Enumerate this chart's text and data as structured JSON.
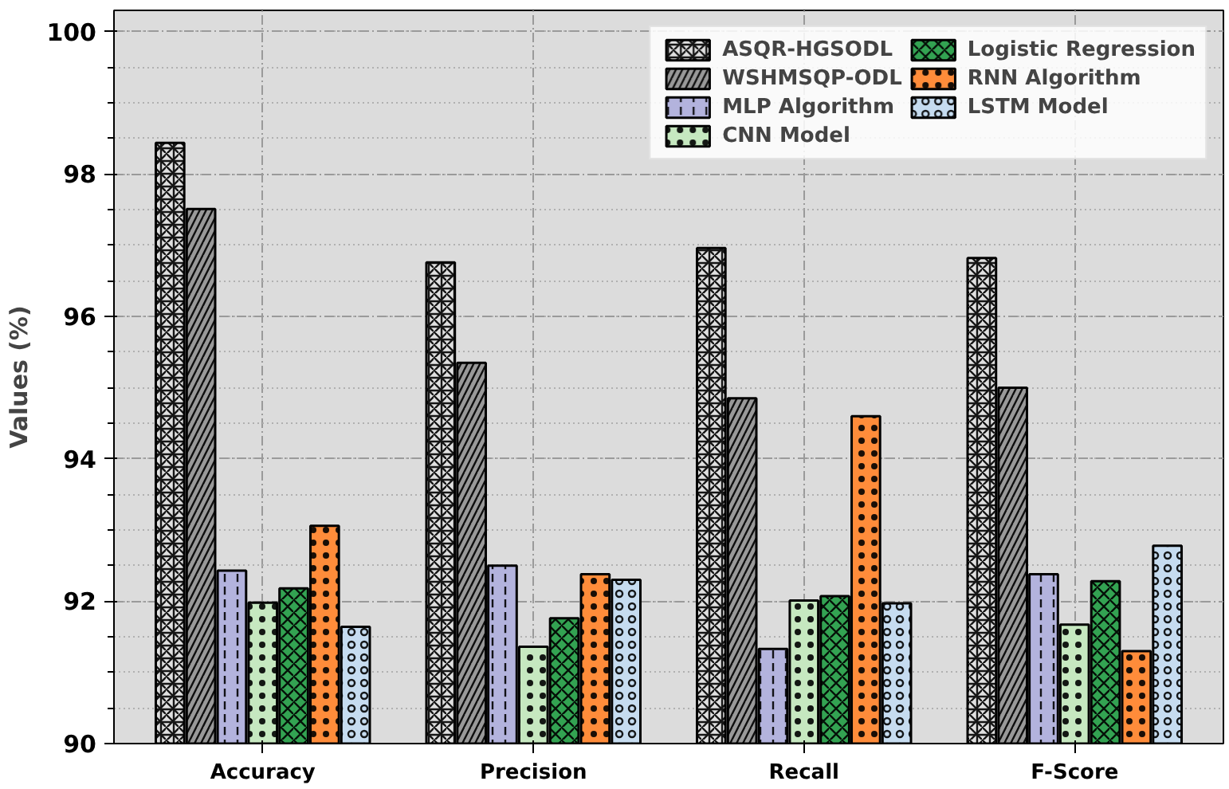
{
  "chart_data": {
    "type": "bar",
    "ylabel": "Values (%)",
    "categories": [
      "Accuracy",
      "Precision",
      "Recall",
      "F-Score"
    ],
    "ylim": [
      90,
      100.3
    ],
    "yticks": [
      90,
      92,
      94,
      96,
      98,
      100
    ],
    "grid": true,
    "legend": "top right",
    "series": [
      {
        "name": "ASQR-HGSODL",
        "color": "#e0e0e0",
        "values": [
          98.44,
          96.76,
          96.96,
          96.82
        ]
      },
      {
        "name": "WSHMSQP-ODL",
        "color": "#999999",
        "values": [
          97.51,
          95.35,
          94.85,
          95.0
        ]
      },
      {
        "name": "MLP Algorithm",
        "color": "#b3b3dd",
        "values": [
          92.43,
          92.5,
          91.33,
          92.38
        ]
      },
      {
        "name": "CNN Model",
        "color": "#c6e8c0",
        "values": [
          91.98,
          91.36,
          92.01,
          91.67
        ]
      },
      {
        "name": "Logistic Regression",
        "color": "#33a352",
        "values": [
          92.18,
          91.76,
          92.07,
          92.28
        ]
      },
      {
        "name": "RNN Algorithm",
        "color": "#ff8c3a",
        "values": [
          93.06,
          92.38,
          94.6,
          91.3
        ]
      },
      {
        "name": "LSTM Model",
        "color": "#c6dcf0",
        "values": [
          91.64,
          92.3,
          91.97,
          92.78
        ]
      }
    ]
  }
}
